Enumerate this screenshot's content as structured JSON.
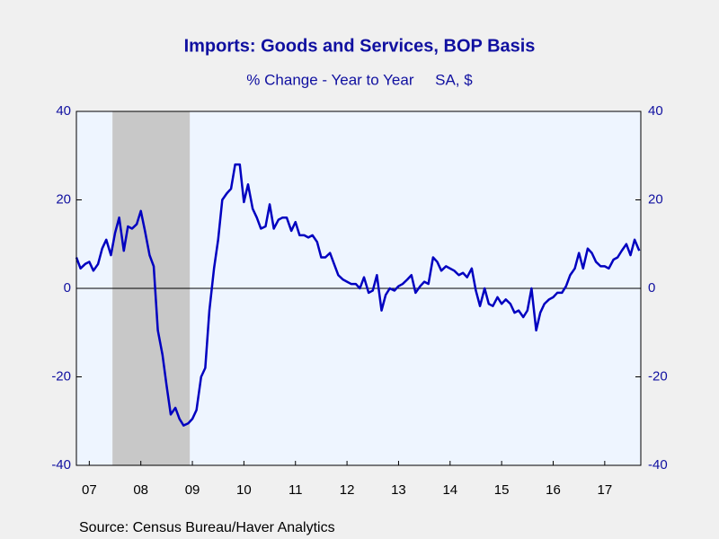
{
  "chart_data": {
    "type": "line",
    "title": "Imports: Goods and Services, BOP Basis",
    "subtitle": "% Change - Year to Year     SA, $",
    "source": "Source:  Census Bureau/Haver Analytics",
    "x": [
      2007.25,
      2007.33,
      2007.42,
      2007.5,
      2007.58,
      2007.67,
      2007.75,
      2007.83,
      2007.92,
      2008.0,
      2008.08,
      2008.17,
      2008.25,
      2008.33,
      2008.42,
      2008.5,
      2008.58,
      2008.67,
      2008.75,
      2008.83,
      2008.92,
      2009.0,
      2009.08,
      2009.17,
      2009.25,
      2009.33,
      2009.42,
      2009.5,
      2009.58,
      2009.67,
      2009.75,
      2009.83,
      2009.92,
      2010.0,
      2010.08,
      2010.17,
      2010.25,
      2010.33,
      2010.42,
      2010.5,
      2010.58,
      2010.67,
      2010.75,
      2010.83,
      2010.92,
      2011.0,
      2011.08,
      2011.17,
      2011.25,
      2011.33,
      2011.42,
      2011.5,
      2011.58,
      2011.67,
      2011.75,
      2011.83,
      2011.92,
      2012.0,
      2012.08,
      2012.17,
      2012.25,
      2012.33,
      2012.42,
      2012.5,
      2012.58,
      2012.67,
      2012.75,
      2012.83,
      2012.92,
      2013.0,
      2013.08,
      2013.17,
      2013.25,
      2013.33,
      2013.42,
      2013.5,
      2013.58,
      2013.67,
      2013.75,
      2013.83,
      2013.92,
      2014.0,
      2014.08,
      2014.17,
      2014.25,
      2014.33,
      2014.42,
      2014.5,
      2014.58,
      2014.67,
      2014.75,
      2014.83,
      2014.92,
      2015.0,
      2015.08,
      2015.17,
      2015.25,
      2015.33,
      2015.42,
      2015.5,
      2015.58,
      2015.67,
      2015.75,
      2015.83,
      2015.92,
      2016.0,
      2016.08,
      2016.17,
      2016.25,
      2016.33,
      2016.42,
      2016.5,
      2016.58,
      2016.67,
      2016.75,
      2016.83,
      2016.92,
      2017.0,
      2017.08,
      2017.17,
      2017.25,
      2017.33,
      2017.42,
      2017.5,
      2017.58,
      2017.67,
      2017.75,
      2017.83,
      2017.92,
      2018.0,
      2018.08,
      2018.17
    ],
    "series": [
      {
        "color": "#0000c0",
        "values": [
          7,
          4.5,
          5.5,
          6,
          4,
          5.5,
          9,
          11,
          7.5,
          12.5,
          16,
          8.5,
          14,
          13.5,
          14.5,
          17.5,
          13,
          7.5,
          5,
          -9.5,
          -15,
          -22,
          -28.5,
          -27,
          -29.5,
          -31,
          -30.5,
          -29.5,
          -27.5,
          -20,
          -18,
          -5,
          4.5,
          11,
          20,
          21.5,
          22.5,
          28,
          28,
          19.5,
          23.5,
          18,
          16,
          13.5,
          14,
          19,
          13.5,
          15.5,
          16,
          16,
          13,
          15,
          12,
          12,
          11.5,
          12,
          10.5,
          7,
          7,
          8,
          5.5,
          3,
          2,
          1.5,
          1,
          1,
          0,
          2.5,
          -1,
          -0.5,
          3,
          -5,
          -1.5,
          0,
          -0.5,
          0.5,
          1,
          2,
          3,
          -1,
          0.5,
          1.5,
          1,
          7,
          6,
          4,
          5,
          4.5,
          4,
          3,
          3.5,
          2.5,
          4.5,
          -0.5,
          -4,
          0,
          -3.5,
          -4,
          -2,
          -3.5,
          -2.5,
          -3.5,
          -5.5,
          -5,
          -6.5,
          -5,
          0,
          -9.5,
          -5.5,
          -3.5,
          -2.5,
          -2,
          -1,
          -1,
          0.5,
          3,
          4.5,
          8,
          4.5,
          9,
          8,
          6,
          5,
          5,
          4.5,
          6.5,
          7,
          8.5,
          10,
          7.5,
          11,
          8.5
        ]
      }
    ],
    "xlim": [
      2007.25,
      2018.2
    ],
    "xticks": [
      {
        "value": 2007.5,
        "label": "07"
      },
      {
        "value": 2008.5,
        "label": "08"
      },
      {
        "value": 2009.5,
        "label": "09"
      },
      {
        "value": 2010.5,
        "label": "10"
      },
      {
        "value": 2011.5,
        "label": "11"
      },
      {
        "value": 2012.5,
        "label": "12"
      },
      {
        "value": 2013.5,
        "label": "13"
      },
      {
        "value": 2014.5,
        "label": "14"
      },
      {
        "value": 2015.5,
        "label": "15"
      },
      {
        "value": 2016.5,
        "label": "16"
      },
      {
        "value": 2017.5,
        "label": "17"
      }
    ],
    "ylim": [
      -40,
      40
    ],
    "yticks": [
      40,
      20,
      0,
      -20,
      -40
    ],
    "y2lim": [
      -40,
      40
    ],
    "y2ticks": [
      40,
      20,
      0,
      -20,
      -40
    ],
    "shaded_ranges": [
      [
        2007.95,
        2009.45
      ]
    ],
    "shade_color": "#c8c8c8",
    "zero_line": true,
    "grid": false
  }
}
